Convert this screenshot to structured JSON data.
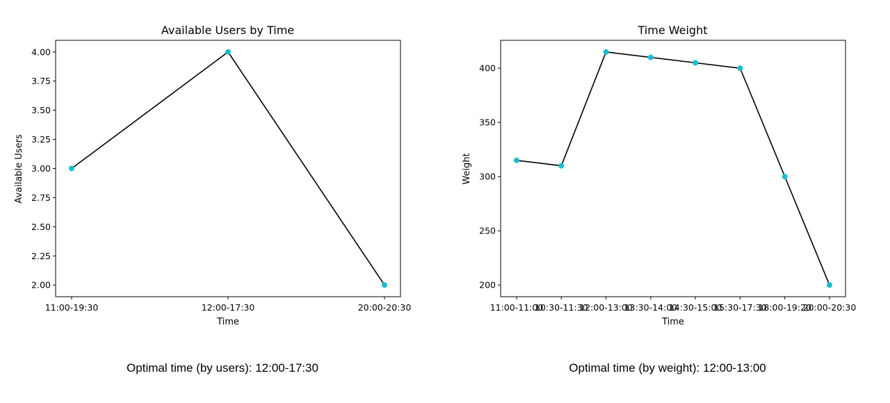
{
  "chart_data": [
    {
      "type": "line",
      "title": "Available Users by Time",
      "xlabel": "Time",
      "ylabel": "Available Users",
      "categories": [
        "11:00-19:30",
        "12:00-17:30",
        "20:00-20:30"
      ],
      "values": [
        3,
        4,
        2
      ],
      "yticks": [
        "2.00",
        "2.25",
        "2.50",
        "2.75",
        "3.00",
        "3.25",
        "3.50",
        "3.75",
        "4.00"
      ],
      "ylim": [
        1.9,
        4.1
      ],
      "line_color": "#000000",
      "marker_color": "#17becf",
      "grid": false
    },
    {
      "type": "line",
      "title": "Time Weight",
      "xlabel": "Time",
      "ylabel": "Weight",
      "categories": [
        "11:00-11:00",
        "10:30-11:30",
        "12:00-13:00",
        "13:30-14:00",
        "14:30-15:00",
        "15:30-17:30",
        "18:00-19:20",
        "20:00-20:30"
      ],
      "values": [
        315,
        310,
        415,
        410,
        405,
        400,
        300,
        200
      ],
      "yticks": [
        "200",
        "250",
        "300",
        "350",
        "400"
      ],
      "ylim": [
        189.25,
        425.75
      ],
      "line_color": "#000000",
      "marker_color": "#17becf",
      "grid": false
    }
  ],
  "captions": {
    "left": "Optimal time (by users): 12:00-17:30",
    "right": "Optimal time (by weight): 12:00-13:00"
  }
}
